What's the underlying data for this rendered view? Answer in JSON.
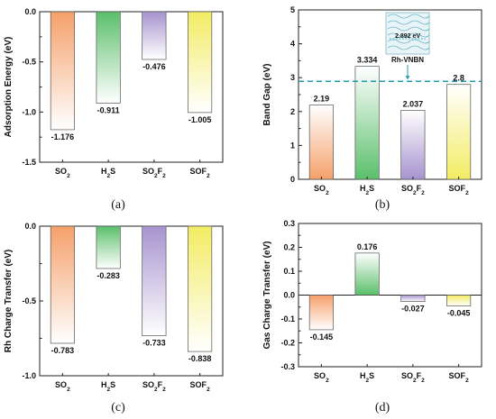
{
  "colors": {
    "SO2": "#f5a06a",
    "H2S": "#5bbf6b",
    "SO2F2": "#a793cf",
    "SOF2": "#f3ec63",
    "dash": "#1f9bb0"
  },
  "panel_labels": [
    "(a)",
    "(b)",
    "(c)",
    "(d)"
  ],
  "chart_data": [
    {
      "type": "bar",
      "panel": "(a)",
      "title": "",
      "xlabel": "",
      "ylabel": "Adsorption Energy (eV)",
      "categories": [
        "SO2",
        "H2S",
        "SO2F2",
        "SOF2"
      ],
      "values": [
        -1.176,
        -0.911,
        -0.476,
        -1.005
      ],
      "data_labels": [
        "-1.176",
        "-0.911",
        "-0.476",
        "-1.005"
      ],
      "ylim": [
        -1.5,
        0.0
      ],
      "yticks": [
        0.0,
        -0.5,
        -1.0,
        -1.5
      ],
      "ytick_labels": [
        "0.0",
        "-0.5",
        "-1.0",
        "-1.5"
      ],
      "grid": false
    },
    {
      "type": "bar",
      "panel": "(b)",
      "title": "",
      "xlabel": "",
      "ylabel": "Band Gap (eV)",
      "categories": [
        "SO2",
        "H2S",
        "SO2F2",
        "SOF2"
      ],
      "values": [
        2.19,
        3.334,
        2.037,
        2.8
      ],
      "data_labels": [
        "2.19",
        "3.334",
        "2.037",
        "2.8"
      ],
      "ylim": [
        0,
        5
      ],
      "yticks": [
        0,
        1,
        2,
        3,
        4,
        5
      ],
      "ytick_labels": [
        "0",
        "1",
        "2",
        "3",
        "4",
        "5"
      ],
      "reference_line": {
        "value": 2.892,
        "label": "Rh-VNBN",
        "inset_label": "2.892 eV"
      },
      "grid": false
    },
    {
      "type": "bar",
      "panel": "(c)",
      "title": "",
      "xlabel": "",
      "ylabel": "Rh Charge Transfer (eV)",
      "categories": [
        "SO2",
        "H2S",
        "SO2F2",
        "SOF2"
      ],
      "values": [
        -0.783,
        -0.283,
        -0.733,
        -0.838
      ],
      "data_labels": [
        "-0.783",
        "-0.283",
        "-0.733",
        "-0.838"
      ],
      "ylim": [
        -1.0,
        0.0
      ],
      "yticks": [
        0.0,
        -0.5,
        -1.0
      ],
      "ytick_labels": [
        "0.0",
        "-0.5",
        "-1.0"
      ],
      "grid": false
    },
    {
      "type": "bar",
      "panel": "(d)",
      "title": "",
      "xlabel": "",
      "ylabel": "Gas Charge Transfer (eV)",
      "categories": [
        "SO2",
        "H2S",
        "SO2F2",
        "SOF2"
      ],
      "values": [
        -0.145,
        0.176,
        -0.027,
        -0.045
      ],
      "data_labels": [
        "-0.145",
        "0.176",
        "-0.027",
        "-0.045"
      ],
      "ylim": [
        -0.3,
        0.3
      ],
      "yticks": [
        0.3,
        0.2,
        0.1,
        0.0,
        -0.1,
        -0.2,
        -0.3
      ],
      "ytick_labels": [
        "0.3",
        "0.2",
        "0.1",
        "0.0",
        "-0.1",
        "-0.2",
        "-0.3"
      ],
      "zero_line": true,
      "grid": false
    }
  ]
}
